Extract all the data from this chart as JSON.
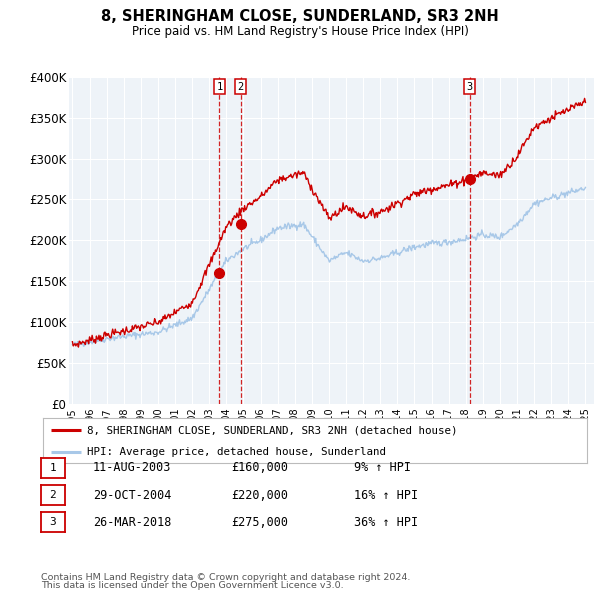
{
  "title": "8, SHERINGHAM CLOSE, SUNDERLAND, SR3 2NH",
  "subtitle": "Price paid vs. HM Land Registry's House Price Index (HPI)",
  "hpi_label": "HPI: Average price, detached house, Sunderland",
  "price_label": "8, SHERINGHAM CLOSE, SUNDERLAND, SR3 2NH (detached house)",
  "footer1": "Contains HM Land Registry data © Crown copyright and database right 2024.",
  "footer2": "This data is licensed under the Open Government Licence v3.0.",
  "price_color": "#cc0000",
  "hpi_color": "#a8c8e8",
  "sale_marker_color": "#cc0000",
  "background_color": "#eef3f8",
  "grid_color": "#ffffff",
  "ylim": [
    0,
    400000
  ],
  "yticks": [
    0,
    50000,
    100000,
    150000,
    200000,
    250000,
    300000,
    350000,
    400000
  ],
  "ytick_labels": [
    "£0",
    "£50K",
    "£100K",
    "£150K",
    "£200K",
    "£250K",
    "£300K",
    "£350K",
    "£400K"
  ],
  "sales": [
    {
      "date_num": 2003.6,
      "price": 160000,
      "label": "1",
      "date_str": "11-AUG-2003",
      "pct": "9%"
    },
    {
      "date_num": 2004.83,
      "price": 220000,
      "label": "2",
      "date_str": "29-OCT-2004",
      "pct": "16%"
    },
    {
      "date_num": 2018.23,
      "price": 275000,
      "label": "3",
      "date_str": "26-MAR-2018",
      "pct": "36%"
    }
  ],
  "xmin": 1994.8,
  "xmax": 2025.5
}
